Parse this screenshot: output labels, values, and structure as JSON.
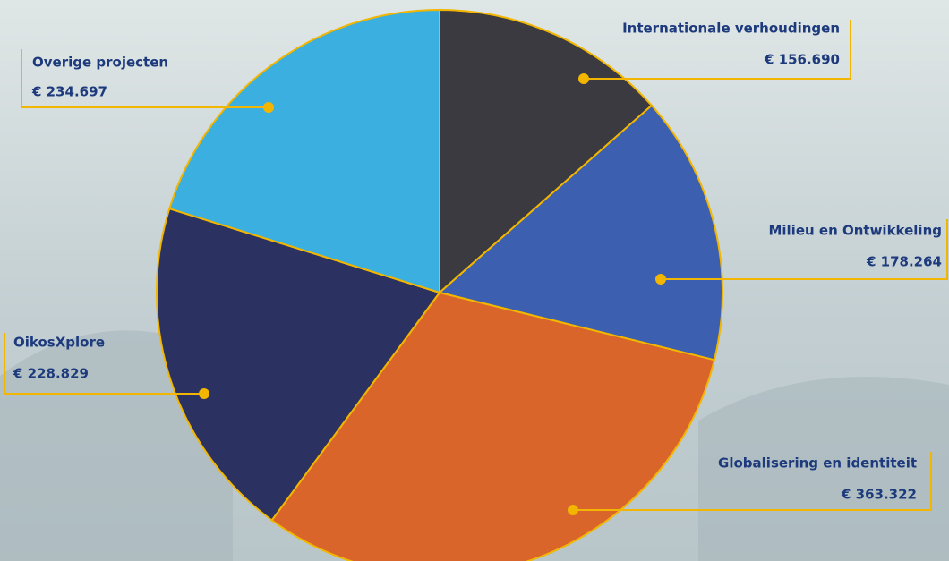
{
  "chart_data": {
    "type": "pie",
    "categories": [
      "Internationale verhoudingen",
      "Milieu en Ontwikkeling",
      "Globalisering en identiteit",
      "OikosXplore",
      "Overige projecten"
    ],
    "values": [
      156690,
      178264,
      363322,
      228829,
      234697
    ],
    "value_labels": [
      "€ 156.690",
      "€ 178.264",
      "€ 363.322",
      "€ 228.829",
      "€ 234.697"
    ],
    "colors": [
      "#3a3a40",
      "#3d5fb0",
      "#d9652a",
      "#2b3160",
      "#3bb0e0"
    ]
  }
}
